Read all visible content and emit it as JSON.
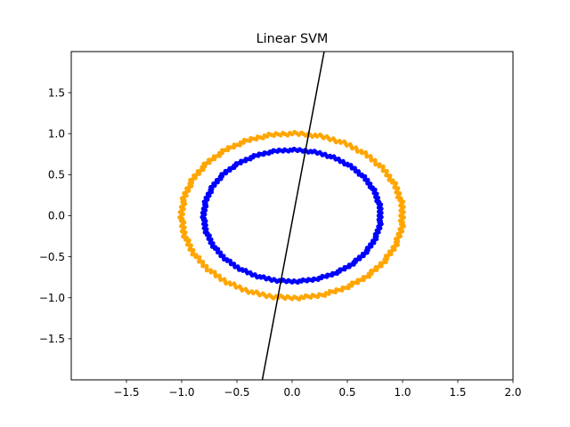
{
  "chart_data": {
    "type": "scatter",
    "title": "Linear SVM",
    "xlabel": "",
    "ylabel": "",
    "xlim": [
      -2.0,
      2.0
    ],
    "ylim": [
      -2.0,
      2.0
    ],
    "x_ticks": [
      -1.5,
      -1.0,
      -0.5,
      0.0,
      0.5,
      1.0,
      1.5,
      2.0
    ],
    "x_tick_labels": [
      "−1.5",
      "−1.0",
      "−0.5",
      "0.0",
      "0.5",
      "1.0",
      "1.5",
      "2.0"
    ],
    "y_ticks": [
      -1.5,
      -1.0,
      -0.5,
      0.0,
      0.5,
      1.0,
      1.5
    ],
    "y_tick_labels": [
      "−1.5",
      "−1.0",
      "−0.5",
      "0.0",
      "0.5",
      "1.0",
      "1.5"
    ],
    "grid": false,
    "legend": "none",
    "series": [
      {
        "color": "#ffa500",
        "shape": "circle",
        "radius": 1.0,
        "points": 300
      },
      {
        "color": "#0000ff",
        "shape": "circle",
        "radius": 0.8,
        "points": 300
      }
    ],
    "decision_boundary": {
      "color": "#000000",
      "x": [
        -0.27,
        0.29
      ],
      "y": [
        -2.0,
        2.0
      ]
    }
  }
}
